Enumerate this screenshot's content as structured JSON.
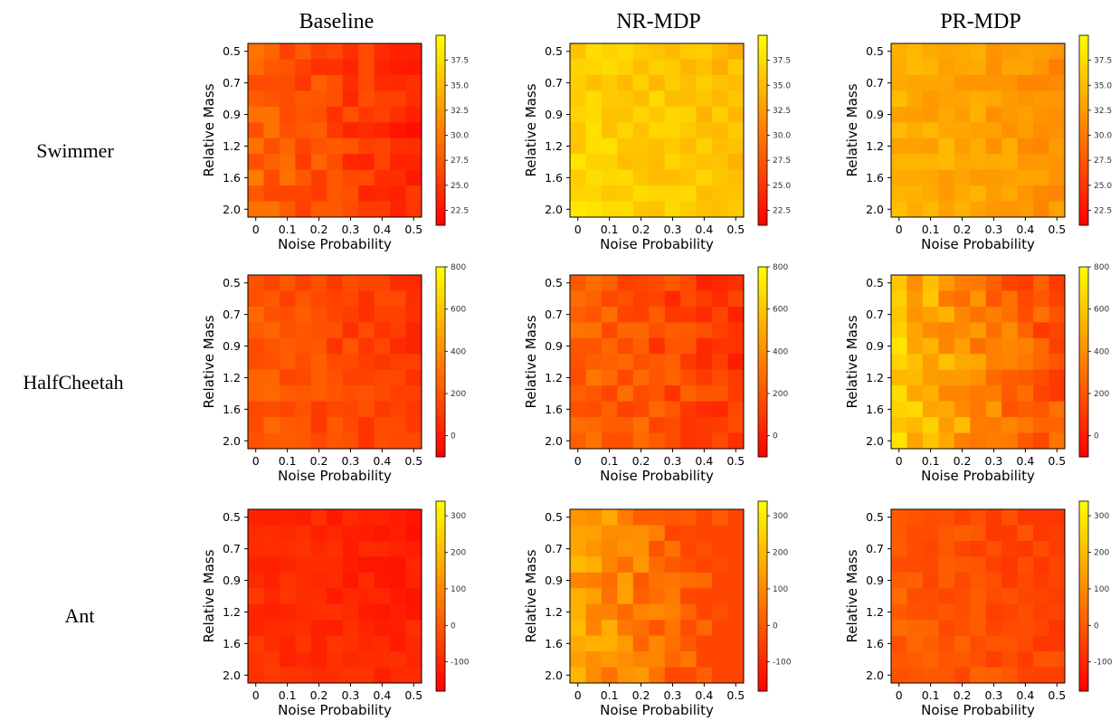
{
  "figure": {
    "column_titles": [
      "Baseline",
      "NR-MDP",
      "PR-MDP"
    ],
    "row_labels": [
      "Swimmer",
      "HalfCheetah",
      "Ant"
    ]
  },
  "chart_data": [
    {
      "type": "heatmap",
      "row": "Swimmer",
      "column": "Baseline",
      "xlabel": "Noise Probability",
      "ylabel": "Relative Mass",
      "x_ticks": [
        "0",
        "0.1",
        "0.2",
        "0.3",
        "0.4",
        "0.5"
      ],
      "y_ticks": [
        "0.5",
        "0.7",
        "0.9",
        "1.2",
        "1.6",
        "2.0"
      ],
      "grid_size": [
        11,
        11
      ],
      "colorbar": {
        "ticks": [
          "22.5",
          "25.0",
          "27.5",
          "30.0",
          "32.5",
          "35.0",
          "37.5"
        ],
        "range": [
          21,
          40
        ],
        "colormap": "autumn"
      },
      "mean_value": 26,
      "approx_range": [
        21,
        31
      ]
    },
    {
      "type": "heatmap",
      "row": "Swimmer",
      "column": "NR-MDP",
      "xlabel": "Noise Probability",
      "ylabel": "Relative Mass",
      "x_ticks": [
        "0",
        "0.1",
        "0.2",
        "0.3",
        "0.4",
        "0.5"
      ],
      "y_ticks": [
        "0.5",
        "0.7",
        "0.9",
        "1.2",
        "1.6",
        "2.0"
      ],
      "grid_size": [
        11,
        11
      ],
      "colorbar": {
        "ticks": [
          "22.5",
          "25.0",
          "27.5",
          "30.0",
          "32.5",
          "35.0",
          "37.5"
        ],
        "range": [
          21,
          40
        ],
        "colormap": "autumn"
      },
      "mean_value": 36,
      "approx_range": [
        33,
        40
      ]
    },
    {
      "type": "heatmap",
      "row": "Swimmer",
      "column": "PR-MDP",
      "xlabel": "Noise Probability",
      "ylabel": "Relative Mass",
      "x_ticks": [
        "0",
        "0.1",
        "0.2",
        "0.3",
        "0.4",
        "0.5"
      ],
      "y_ticks": [
        "0.5",
        "0.7",
        "0.9",
        "1.2",
        "1.6",
        "2.0"
      ],
      "grid_size": [
        11,
        11
      ],
      "colorbar": {
        "ticks": [
          "22.5",
          "25.0",
          "27.5",
          "30.0",
          "32.5",
          "35.0",
          "37.5"
        ],
        "range": [
          21,
          40
        ],
        "colormap": "autumn"
      },
      "mean_value": 33,
      "approx_range": [
        30,
        37
      ]
    },
    {
      "type": "heatmap",
      "row": "HalfCheetah",
      "column": "Baseline",
      "xlabel": "Noise Probability",
      "ylabel": "Relative Mass",
      "x_ticks": [
        "0",
        "0.1",
        "0.2",
        "0.3",
        "0.4",
        "0.5"
      ],
      "y_ticks": [
        "0.5",
        "0.7",
        "0.9",
        "1.2",
        "1.6",
        "2.0"
      ],
      "grid_size": [
        11,
        11
      ],
      "colorbar": {
        "ticks": [
          "0",
          "200",
          "400",
          "600",
          "800"
        ],
        "range": [
          -100,
          800
        ],
        "colormap": "autumn"
      },
      "mean_value": 150,
      "approx_range": [
        0,
        380
      ]
    },
    {
      "type": "heatmap",
      "row": "HalfCheetah",
      "column": "NR-MDP",
      "xlabel": "Noise Probability",
      "ylabel": "Relative Mass",
      "x_ticks": [
        "0",
        "0.1",
        "0.2",
        "0.3",
        "0.4",
        "0.5"
      ],
      "y_ticks": [
        "0.5",
        "0.7",
        "0.9",
        "1.2",
        "1.6",
        "2.0"
      ],
      "grid_size": [
        11,
        11
      ],
      "colorbar": {
        "ticks": [
          "0",
          "200",
          "400",
          "600",
          "800"
        ],
        "range": [
          -100,
          800
        ],
        "colormap": "autumn"
      },
      "mean_value": 170,
      "approx_range": [
        -50,
        450
      ]
    },
    {
      "type": "heatmap",
      "row": "HalfCheetah",
      "column": "PR-MDP",
      "xlabel": "Noise Probability",
      "ylabel": "Relative Mass",
      "x_ticks": [
        "0",
        "0.1",
        "0.2",
        "0.3",
        "0.4",
        "0.5"
      ],
      "y_ticks": [
        "0.5",
        "0.7",
        "0.9",
        "1.2",
        "1.6",
        "2.0"
      ],
      "grid_size": [
        11,
        11
      ],
      "colorbar": {
        "ticks": [
          "0",
          "200",
          "400",
          "600",
          "800"
        ],
        "range": [
          -100,
          800
        ],
        "colormap": "autumn"
      },
      "mean_value": 380,
      "approx_range": [
        100,
        760
      ]
    },
    {
      "type": "heatmap",
      "row": "Ant",
      "column": "Baseline",
      "xlabel": "Noise Probability",
      "ylabel": "Relative Mass",
      "x_ticks": [
        "0",
        "0.1",
        "0.2",
        "0.3",
        "0.4",
        "0.5"
      ],
      "y_ticks": [
        "0.5",
        "0.7",
        "0.9",
        "1.2",
        "1.6",
        "2.0"
      ],
      "grid_size": [
        11,
        11
      ],
      "colorbar": {
        "ticks": [
          "-100",
          "0",
          "100",
          "200",
          "300"
        ],
        "range": [
          -180,
          340
        ],
        "colormap": "autumn"
      },
      "mean_value": -100,
      "approx_range": [
        -180,
        -30
      ]
    },
    {
      "type": "heatmap",
      "row": "Ant",
      "column": "NR-MDP",
      "xlabel": "Noise Probability",
      "ylabel": "Relative Mass",
      "x_ticks": [
        "0",
        "0.1",
        "0.2",
        "0.3",
        "0.4",
        "0.5"
      ],
      "y_ticks": [
        "0.5",
        "0.7",
        "0.9",
        "1.2",
        "1.6",
        "2.0"
      ],
      "grid_size": [
        11,
        11
      ],
      "colorbar": {
        "ticks": [
          "-100",
          "0",
          "100",
          "200",
          "300"
        ],
        "range": [
          -180,
          340
        ],
        "colormap": "autumn"
      },
      "mean_value": 40,
      "approx_range": [
        -40,
        320
      ]
    },
    {
      "type": "heatmap",
      "row": "Ant",
      "column": "PR-MDP",
      "xlabel": "Noise Probability",
      "ylabel": "Relative Mass",
      "x_ticks": [
        "0",
        "0.1",
        "0.2",
        "0.3",
        "0.4",
        "0.5"
      ],
      "y_ticks": [
        "0.5",
        "0.7",
        "0.9",
        "1.2",
        "1.6",
        "2.0"
      ],
      "grid_size": [
        11,
        11
      ],
      "colorbar": {
        "ticks": [
          "-100",
          "0",
          "100",
          "200",
          "300"
        ],
        "range": [
          -180,
          340
        ],
        "colormap": "autumn"
      },
      "mean_value": -20,
      "approx_range": [
        -70,
        120
      ]
    }
  ]
}
